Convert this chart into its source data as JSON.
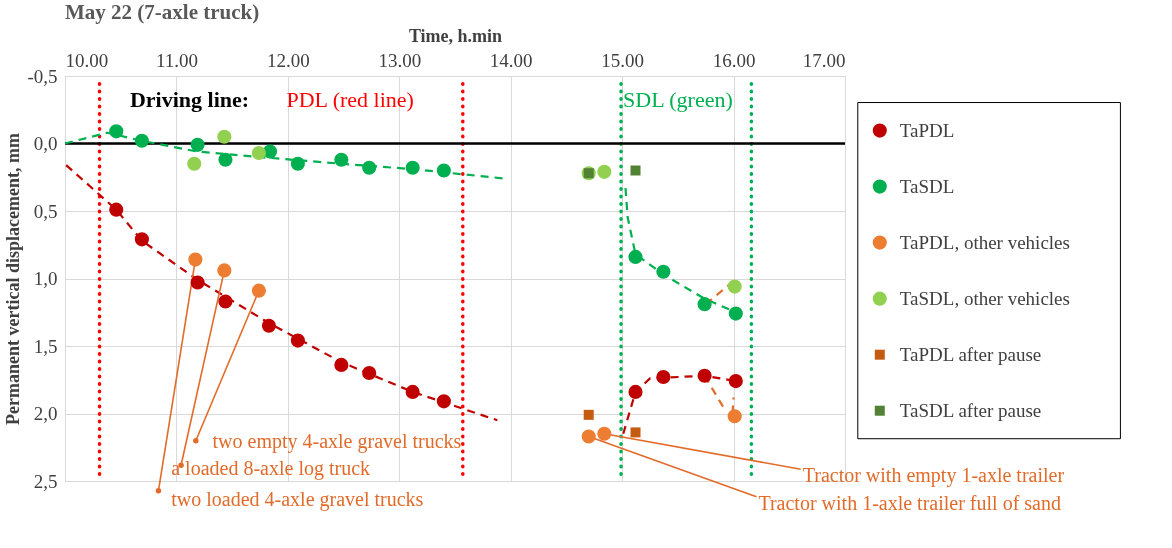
{
  "chart_data": {
    "type": "scatter",
    "title": "May 22 (7-axle truck)",
    "xlabel": "Time, h.min",
    "ylabel": "Permanent vertical displacement, mm",
    "xlim": [
      10,
      17
    ],
    "xticks": [
      {
        "value": 10,
        "label": "10.00"
      },
      {
        "value": 11,
        "label": "11.00"
      },
      {
        "value": 12,
        "label": "12.00"
      },
      {
        "value": 13,
        "label": "13.00"
      },
      {
        "value": 14,
        "label": "14.00"
      },
      {
        "value": 15,
        "label": "15.00"
      },
      {
        "value": 16,
        "label": "16.00"
      },
      {
        "value": 17,
        "label": "17.00"
      }
    ],
    "ylim": [
      2.5,
      -0.5
    ],
    "yticks": [
      {
        "value": -0.5,
        "label": "-0,5"
      },
      {
        "value": 0,
        "label": "0,0"
      },
      {
        "value": 0.5,
        "label": "0,5"
      },
      {
        "value": 1,
        "label": "1,0"
      },
      {
        "value": 1.5,
        "label": "1,5"
      },
      {
        "value": 2,
        "label": "2,0"
      },
      {
        "value": 2.5,
        "label": "2,5"
      }
    ],
    "grid": true,
    "legend": "right",
    "series": [
      {
        "name": "TaPDL",
        "type": "scatter",
        "marker": "circle",
        "color": "#c00000",
        "x": [
          10.46,
          10.69,
          11.19,
          11.44,
          11.83,
          12.09,
          12.48,
          12.73,
          13.12,
          13.4,
          15.12,
          15.37,
          15.74,
          16.02
        ],
        "values": [
          0.49,
          0.71,
          1.03,
          1.17,
          1.35,
          1.46,
          1.64,
          1.7,
          1.84,
          1.91,
          1.84,
          1.73,
          1.72,
          1.76
        ]
      },
      {
        "name": "TaSDL",
        "type": "scatter",
        "marker": "circle",
        "color": "#00b050",
        "x": [
          10.46,
          10.69,
          11.19,
          11.44,
          11.84,
          12.09,
          12.48,
          12.73,
          13.12,
          13.4,
          15.12,
          15.37,
          15.74,
          16.02
        ],
        "values": [
          -0.09,
          -0.02,
          0.01,
          0.12,
          0.06,
          0.15,
          0.12,
          0.18,
          0.18,
          0.2,
          0.84,
          0.95,
          1.19,
          1.26
        ]
      },
      {
        "name": "TaPDL, other vehicles",
        "type": "scatter",
        "marker": "circle",
        "color": "#ed7d31",
        "x": [
          11.17,
          11.43,
          11.74,
          14.7,
          14.84,
          16.01
        ],
        "values": [
          0.86,
          0.94,
          1.09,
          2.17,
          2.15,
          2.02
        ]
      },
      {
        "name": "TaSDL, other vehicles",
        "type": "scatter",
        "marker": "circle",
        "color": "#92d050",
        "x": [
          11.16,
          11.43,
          11.74,
          14.7,
          14.84,
          16.01
        ],
        "values": [
          0.15,
          -0.05,
          0.07,
          0.22,
          0.21,
          1.06
        ]
      },
      {
        "name": "TaPDL after pause",
        "type": "scatter",
        "marker": "square",
        "color": "#c55a11",
        "x": [
          14.7,
          15.12
        ],
        "values": [
          2.01,
          2.14
        ]
      },
      {
        "name": "TaSDL after pause",
        "type": "scatter",
        "marker": "square",
        "color": "#548235",
        "x": [
          14.7,
          15.12
        ],
        "values": [
          0.22,
          0.2
        ]
      },
      {
        "type": "line",
        "line_style": "dashed",
        "color": "#c00000",
        "x": [
          10.01,
          10.46,
          10.69,
          11.19,
          11.83,
          12.48,
          13.12,
          13.88
        ],
        "values": [
          0.16,
          0.49,
          0.72,
          1.01,
          1.33,
          1.62,
          1.84,
          2.05
        ]
      },
      {
        "type": "line",
        "line_style": "dashed",
        "color": "#00b050",
        "x": [
          10.0,
          10.38,
          10.69,
          11.19,
          11.74,
          12.48,
          13.12,
          13.95
        ],
        "values": [
          0.0,
          -0.08,
          -0.02,
          0.06,
          0.1,
          0.15,
          0.19,
          0.26
        ]
      },
      {
        "type": "line",
        "line_style": "dashed",
        "color": "#00b050",
        "x": [
          15.03,
          15.05,
          15.12,
          15.37,
          15.74,
          16.02
        ],
        "values": [
          0.33,
          0.55,
          0.82,
          0.97,
          1.15,
          1.25
        ]
      },
      {
        "type": "line",
        "line_style": "dashed",
        "color": "#c00000",
        "x": [
          15.01,
          15.12,
          15.25,
          15.74,
          16.02
        ],
        "values": [
          2.15,
          1.84,
          1.74,
          1.72,
          1.76
        ]
      },
      {
        "type": "line",
        "line_style": "dashed",
        "color": "#e26b2a",
        "x": [
          15.75,
          15.97
        ],
        "values": [
          1.19,
          1.04
        ]
      },
      {
        "type": "line",
        "line_style": "dashed",
        "color": "#e26b2a",
        "x": [
          15.74,
          15.92
        ],
        "values": [
          1.72,
          1.97
        ]
      },
      {
        "type": "line",
        "line_style": "dashed",
        "color": "#e26b2a",
        "x": [
          15.99,
          16.0
        ],
        "values": [
          2.0,
          1.88
        ]
      }
    ],
    "ref_lines": [
      {
        "axis": "x",
        "value": 10.31,
        "label": "PDL (red line)",
        "color": "#ff0000",
        "line_style": "dotted"
      },
      {
        "axis": "x",
        "value": 13.57,
        "color": "#ff0000",
        "line_style": "dotted"
      },
      {
        "axis": "x",
        "value": 14.99,
        "label": "SDL (green)",
        "color": "#00b050",
        "line_style": "dotted"
      },
      {
        "axis": "x",
        "value": 16.16,
        "color": "#00b050",
        "line_style": "dotted"
      },
      {
        "axis": "y",
        "value": 0,
        "color": "#000000",
        "line_style": "solid"
      }
    ],
    "annotations": [
      "Driving line:",
      {
        "text": "two empty 4-axle gravel trucks",
        "x": 11.74,
        "y": 1.09
      },
      {
        "text": "a loaded 8-axle log truck",
        "x": 11.43,
        "y": 0.94
      },
      {
        "text": "two loaded 4-axle gravel trucks",
        "x": 11.17,
        "y": 0.86
      },
      {
        "text": "Tractor with empty 1-axle trailer",
        "x": 14.84,
        "y": 2.15
      },
      {
        "text": "Tractor with 1-axle trailer full of sand",
        "x": 14.7,
        "y": 2.17
      }
    ]
  }
}
